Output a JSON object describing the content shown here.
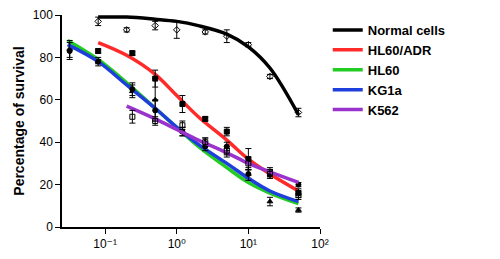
{
  "chart_data": {
    "type": "scatter",
    "y_label": "Percentage of survival",
    "log": "x",
    "grid": false,
    "legend": "right",
    "xlim": [
      0.025,
      100
    ],
    "xticks": [
      {
        "value": 0.1,
        "label": "10⁻¹"
      },
      {
        "value": 1,
        "label": "10⁰"
      },
      {
        "value": 10,
        "label": "10¹"
      },
      {
        "value": 100,
        "label": "10²"
      }
    ],
    "ylim": [
      0,
      100
    ],
    "yticks": [
      0,
      20,
      40,
      60,
      80,
      100
    ],
    "series": [
      {
        "name": "Normal cells",
        "color": "#000000",
        "marker": "diamond-open",
        "x": [
          0.08,
          0.2,
          0.5,
          1.0,
          2.5,
          5,
          10,
          20,
          50
        ],
        "values": [
          97,
          93,
          95,
          93,
          92,
          90,
          86,
          71,
          54
        ],
        "errors": [
          2,
          1,
          2,
          4,
          1,
          3,
          1,
          1,
          2
        ],
        "fit_x": [
          0.08,
          0.2,
          0.5,
          1,
          2,
          5,
          10,
          20,
          50
        ],
        "fit": [
          99,
          99,
          98,
          97,
          95,
          91,
          85,
          75,
          53
        ]
      },
      {
        "name": "HL60/ADR",
        "color": "#ff2a2a",
        "marker": "square",
        "x": [
          0.08,
          0.24,
          0.5,
          1.2,
          2.5,
          5,
          10,
          20,
          50
        ],
        "values": [
          83,
          82,
          70,
          58,
          51,
          45,
          32,
          26,
          16
        ],
        "errors": [
          1,
          1,
          4,
          4,
          1,
          2,
          5,
          2,
          2
        ],
        "fit_x": [
          0.08,
          0.2,
          0.5,
          1,
          2,
          5,
          10,
          20,
          50
        ],
        "fit": [
          87,
          81,
          72,
          62,
          52,
          41,
          32,
          25,
          17
        ]
      },
      {
        "name": "HL60",
        "color": "#22cc22",
        "marker": "triangle-up",
        "x": [
          0.032,
          0.08,
          0.24,
          0.5,
          1.2,
          2.5,
          5,
          10,
          20,
          50
        ],
        "values": [
          84,
          78,
          64,
          60,
          45,
          40,
          35,
          25,
          12,
          8
        ],
        "errors": [
          4,
          1,
          3,
          10,
          2,
          2,
          2,
          2,
          2,
          1
        ],
        "fit_x": [
          0.03,
          0.08,
          0.2,
          0.5,
          1,
          2,
          5,
          10,
          20,
          50
        ],
        "fit": [
          88,
          79,
          68,
          56,
          47,
          38,
          28,
          21,
          16,
          11
        ]
      },
      {
        "name": "KG1a",
        "color": "#1f3fdd",
        "marker": "circle",
        "x": [
          0.032,
          0.08,
          0.24,
          0.5,
          1.2,
          2.5,
          5,
          10,
          20,
          50
        ],
        "values": [
          83,
          78,
          65,
          55,
          45,
          38,
          38,
          25,
          25,
          20
        ],
        "errors": [
          4,
          2,
          3,
          5,
          2,
          2,
          2,
          3,
          2,
          1
        ],
        "fit_x": [
          0.03,
          0.08,
          0.2,
          0.5,
          1,
          2,
          5,
          10,
          20,
          50
        ],
        "fit": [
          86,
          78,
          67,
          56,
          47,
          39,
          30,
          23,
          17,
          12
        ]
      },
      {
        "name": "K562",
        "color": "#9933cc",
        "marker": "square-open",
        "x": [
          0.24,
          0.5,
          1.2,
          2.5,
          5,
          10,
          20,
          50
        ],
        "values": [
          52,
          50,
          48,
          40,
          36,
          30,
          25,
          15
        ],
        "errors": [
          3,
          2,
          2,
          2,
          2,
          3,
          2,
          2
        ],
        "fit_x": [
          0.2,
          0.5,
          1,
          2,
          5,
          10,
          20,
          50
        ],
        "fit": [
          57,
          51,
          46,
          41,
          35,
          30,
          26,
          21
        ]
      }
    ]
  }
}
